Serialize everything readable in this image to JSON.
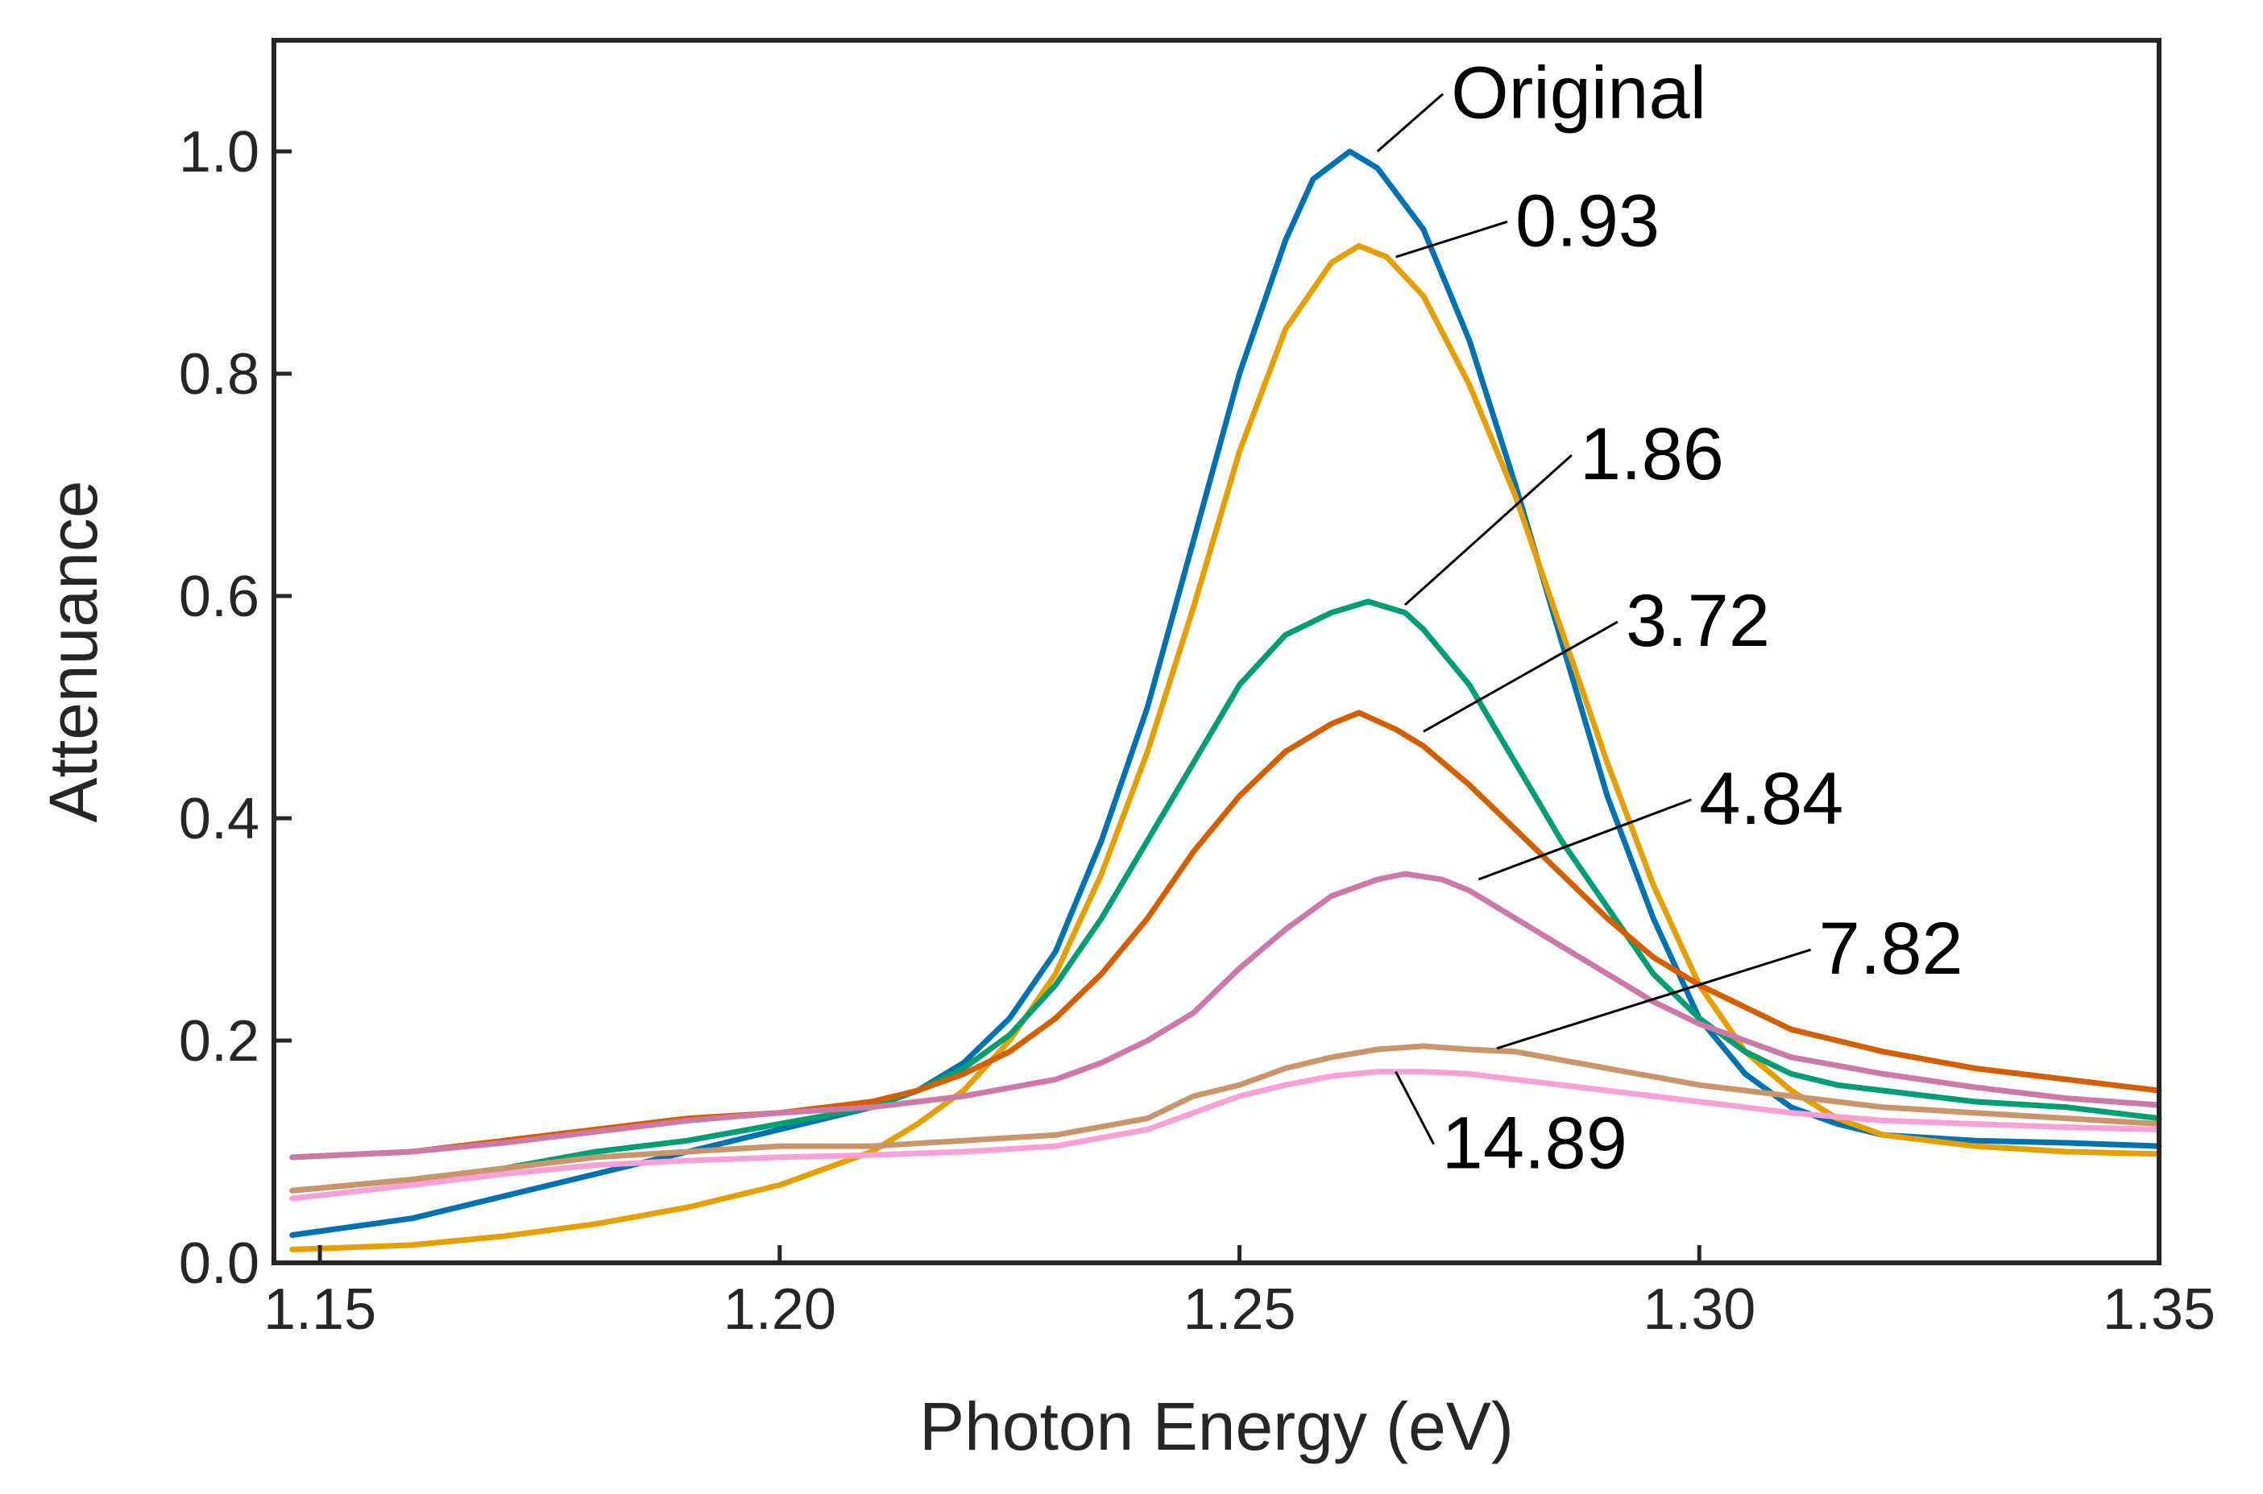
{
  "chart_data": {
    "type": "line",
    "title": "",
    "xlabel": "Photon Energy (eV)",
    "ylabel": "Attenuance",
    "xlim": [
      1.145,
      1.35
    ],
    "ylim": [
      0.0,
      1.1
    ],
    "xticks": [
      1.15,
      1.2,
      1.25,
      1.3,
      1.35
    ],
    "xtick_labels": [
      "1.15",
      "1.20",
      "1.25",
      "1.30",
      "1.35"
    ],
    "yticks": [
      0.0,
      0.2,
      0.4,
      0.6,
      0.8,
      1.0
    ],
    "ytick_labels": [
      "0.0",
      "0.2",
      "0.4",
      "0.6",
      "0.8",
      "1.0"
    ],
    "grid": false,
    "legend": "none",
    "series": [
      {
        "name": "Original",
        "color": "#0072b2",
        "x": [
          1.147,
          1.16,
          1.17,
          1.18,
          1.19,
          1.2,
          1.21,
          1.215,
          1.22,
          1.225,
          1.23,
          1.235,
          1.24,
          1.245,
          1.25,
          1.255,
          1.258,
          1.262,
          1.265,
          1.27,
          1.275,
          1.28,
          1.285,
          1.29,
          1.295,
          1.3,
          1.305,
          1.31,
          1.315,
          1.32,
          1.33,
          1.34,
          1.35
        ],
        "y": [
          0.025,
          0.04,
          0.06,
          0.08,
          0.1,
          0.12,
          0.14,
          0.155,
          0.18,
          0.22,
          0.28,
          0.38,
          0.5,
          0.65,
          0.8,
          0.92,
          0.975,
          1.0,
          0.985,
          0.93,
          0.83,
          0.7,
          0.56,
          0.42,
          0.31,
          0.22,
          0.17,
          0.14,
          0.125,
          0.115,
          0.11,
          0.108,
          0.105
        ]
      },
      {
        "name": "0.93",
        "color": "#e69f00",
        "x": [
          1.147,
          1.16,
          1.17,
          1.18,
          1.19,
          1.2,
          1.21,
          1.215,
          1.22,
          1.225,
          1.23,
          1.235,
          1.24,
          1.245,
          1.25,
          1.255,
          1.26,
          1.263,
          1.266,
          1.27,
          1.275,
          1.28,
          1.285,
          1.29,
          1.295,
          1.3,
          1.305,
          1.31,
          1.315,
          1.32,
          1.33,
          1.34,
          1.35
        ],
        "y": [
          0.012,
          0.016,
          0.024,
          0.035,
          0.05,
          0.07,
          0.1,
          0.125,
          0.155,
          0.2,
          0.26,
          0.35,
          0.46,
          0.59,
          0.73,
          0.84,
          0.9,
          0.915,
          0.905,
          0.87,
          0.79,
          0.69,
          0.57,
          0.45,
          0.34,
          0.25,
          0.19,
          0.155,
          0.13,
          0.115,
          0.105,
          0.1,
          0.098
        ]
      },
      {
        "name": "1.86",
        "color": "#009e73",
        "x": [
          1.147,
          1.16,
          1.17,
          1.18,
          1.19,
          1.2,
          1.21,
          1.215,
          1.22,
          1.225,
          1.23,
          1.235,
          1.24,
          1.245,
          1.25,
          1.255,
          1.26,
          1.264,
          1.268,
          1.27,
          1.275,
          1.28,
          1.285,
          1.29,
          1.295,
          1.3,
          1.305,
          1.31,
          1.315,
          1.32,
          1.33,
          1.34,
          1.35
        ],
        "y": [
          0.065,
          0.075,
          0.085,
          0.1,
          0.11,
          0.125,
          0.14,
          0.155,
          0.175,
          0.205,
          0.25,
          0.31,
          0.38,
          0.45,
          0.52,
          0.565,
          0.585,
          0.595,
          0.585,
          0.57,
          0.52,
          0.45,
          0.38,
          0.32,
          0.26,
          0.22,
          0.19,
          0.17,
          0.16,
          0.155,
          0.145,
          0.14,
          0.13
        ]
      },
      {
        "name": "3.72",
        "color": "#d55e00",
        "x": [
          1.147,
          1.16,
          1.17,
          1.18,
          1.19,
          1.2,
          1.21,
          1.215,
          1.22,
          1.225,
          1.23,
          1.235,
          1.24,
          1.245,
          1.25,
          1.255,
          1.26,
          1.263,
          1.267,
          1.27,
          1.275,
          1.28,
          1.285,
          1.29,
          1.295,
          1.3,
          1.305,
          1.31,
          1.315,
          1.32,
          1.33,
          1.34,
          1.35
        ],
        "y": [
          0.095,
          0.1,
          0.11,
          0.12,
          0.13,
          0.135,
          0.145,
          0.155,
          0.17,
          0.19,
          0.22,
          0.26,
          0.31,
          0.37,
          0.42,
          0.46,
          0.485,
          0.495,
          0.48,
          0.465,
          0.43,
          0.39,
          0.35,
          0.31,
          0.275,
          0.25,
          0.23,
          0.21,
          0.2,
          0.19,
          0.175,
          0.165,
          0.155
        ]
      },
      {
        "name": "4.84",
        "color": "#cc79a7",
        "x": [
          1.147,
          1.16,
          1.17,
          1.18,
          1.19,
          1.2,
          1.21,
          1.22,
          1.23,
          1.235,
          1.24,
          1.245,
          1.25,
          1.255,
          1.26,
          1.265,
          1.268,
          1.272,
          1.275,
          1.28,
          1.285,
          1.29,
          1.295,
          1.3,
          1.305,
          1.31,
          1.32,
          1.33,
          1.34,
          1.35
        ],
        "y": [
          0.095,
          0.1,
          0.108,
          0.118,
          0.128,
          0.135,
          0.14,
          0.15,
          0.165,
          0.18,
          0.2,
          0.225,
          0.265,
          0.3,
          0.33,
          0.345,
          0.35,
          0.345,
          0.335,
          0.31,
          0.285,
          0.26,
          0.235,
          0.215,
          0.2,
          0.185,
          0.17,
          0.158,
          0.148,
          0.142
        ]
      },
      {
        "name": "7.82",
        "color": "#c9956a",
        "x": [
          1.147,
          1.16,
          1.17,
          1.18,
          1.19,
          1.2,
          1.21,
          1.22,
          1.23,
          1.24,
          1.245,
          1.25,
          1.255,
          1.26,
          1.265,
          1.27,
          1.275,
          1.28,
          1.29,
          1.3,
          1.31,
          1.32,
          1.33,
          1.34,
          1.35
        ],
        "y": [
          0.065,
          0.075,
          0.085,
          0.095,
          0.1,
          0.105,
          0.105,
          0.11,
          0.115,
          0.13,
          0.15,
          0.16,
          0.175,
          0.185,
          0.192,
          0.195,
          0.192,
          0.19,
          0.175,
          0.16,
          0.15,
          0.14,
          0.135,
          0.13,
          0.125
        ]
      },
      {
        "name": "14.89",
        "color": "#f7a1d6",
        "x": [
          1.147,
          1.16,
          1.17,
          1.18,
          1.19,
          1.2,
          1.21,
          1.22,
          1.23,
          1.24,
          1.245,
          1.25,
          1.255,
          1.26,
          1.265,
          1.27,
          1.275,
          1.28,
          1.29,
          1.3,
          1.31,
          1.32,
          1.33,
          1.34,
          1.35
        ],
        "y": [
          0.058,
          0.07,
          0.08,
          0.088,
          0.092,
          0.095,
          0.097,
          0.1,
          0.105,
          0.12,
          0.135,
          0.15,
          0.16,
          0.168,
          0.172,
          0.172,
          0.17,
          0.165,
          0.155,
          0.145,
          0.135,
          0.128,
          0.125,
          0.122,
          0.12
        ]
      }
    ],
    "annotations": [
      {
        "text": "Original",
        "x": 1.273,
        "y": 1.03,
        "point": [
          1.265,
          1.0
        ]
      },
      {
        "text": "0.93",
        "x": 1.28,
        "y": 0.915,
        "point": [
          1.267,
          0.905
        ]
      },
      {
        "text": "1.86",
        "x": 1.287,
        "y": 0.705,
        "point": [
          1.268,
          0.592
        ]
      },
      {
        "text": "3.72",
        "x": 1.292,
        "y": 0.555,
        "point": [
          1.27,
          0.478
        ]
      },
      {
        "text": "4.84",
        "x": 1.3,
        "y": 0.395,
        "point": [
          1.276,
          0.345
        ]
      },
      {
        "text": "7.82",
        "x": 1.313,
        "y": 0.26,
        "point": [
          1.278,
          0.193
        ]
      },
      {
        "text": "14.89",
        "x": 1.272,
        "y": 0.085,
        "point": [
          1.267,
          0.172
        ]
      }
    ]
  }
}
